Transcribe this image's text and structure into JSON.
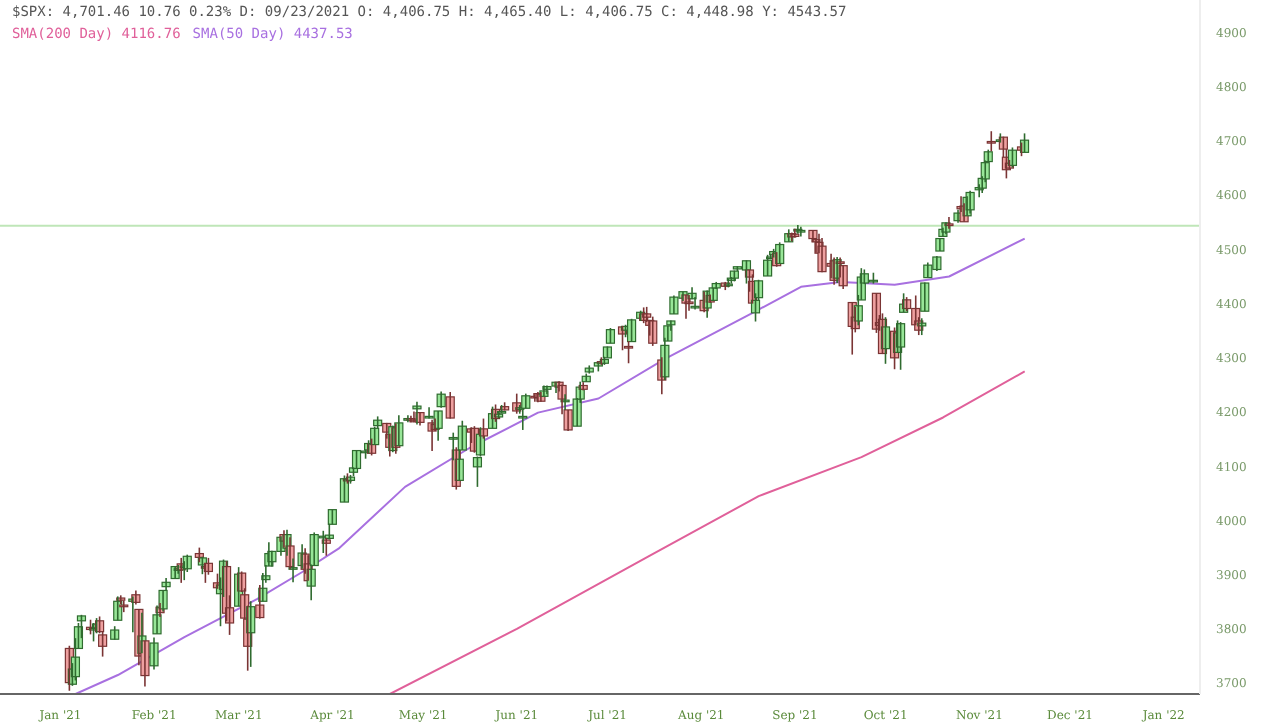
{
  "chart_data": {
    "type": "candlestick",
    "title": "$SPX: 4,701.46 10.76 0.23% D: 09/23/2021 O: 4,406.75 H: 4,465.40 L: 4,406.75 C: 4,448.98 Y: 4543.57",
    "legend": "top left",
    "xlim": [
      "2020-12-12",
      "2022-01-13"
    ],
    "xticks": [
      {
        "value": "2021-01-01",
        "label": "Jan '21"
      },
      {
        "value": "2021-02-01",
        "label": "Feb '21"
      },
      {
        "value": "2021-03-01",
        "label": "Mar '21"
      },
      {
        "value": "2021-04-01",
        "label": "Apr '21"
      },
      {
        "value": "2021-05-01",
        "label": "May '21"
      },
      {
        "value": "2021-06-01",
        "label": "Jun '21"
      },
      {
        "value": "2021-07-01",
        "label": "Jul '21"
      },
      {
        "value": "2021-08-01",
        "label": "Aug '21"
      },
      {
        "value": "2021-09-01",
        "label": "Sep '21"
      },
      {
        "value": "2021-10-01",
        "label": "Oct '21"
      },
      {
        "value": "2021-11-01",
        "label": "Nov '21"
      },
      {
        "value": "2021-12-01",
        "label": "Dec '21"
      },
      {
        "value": "2022-01-01",
        "label": "Jan '22"
      }
    ],
    "ylim": [
      3680,
      4960
    ],
    "yticks": [
      3700,
      3800,
      3900,
      4000,
      4100,
      4200,
      4300,
      4400,
      4500,
      4600,
      4700,
      4800,
      4900
    ],
    "ref_lines": [
      {
        "axis": "y",
        "value": 4543.57,
        "color": "#bfe6b8"
      }
    ],
    "x": [
      "2021-01-04",
      "2021-01-05",
      "2021-01-06",
      "2021-01-07",
      "2021-01-08",
      "2021-01-11",
      "2021-01-12",
      "2021-01-13",
      "2021-01-14",
      "2021-01-15",
      "2021-01-19",
      "2021-01-20",
      "2021-01-21",
      "2021-01-22",
      "2021-01-25",
      "2021-01-26",
      "2021-01-27",
      "2021-01-28",
      "2021-01-29",
      "2021-02-01",
      "2021-02-02",
      "2021-02-03",
      "2021-02-04",
      "2021-02-05",
      "2021-02-08",
      "2021-02-09",
      "2021-02-10",
      "2021-02-11",
      "2021-02-12",
      "2021-02-16",
      "2021-02-17",
      "2021-02-18",
      "2021-02-19",
      "2021-02-22",
      "2021-02-23",
      "2021-02-24",
      "2021-02-25",
      "2021-02-26",
      "2021-03-01",
      "2021-03-02",
      "2021-03-03",
      "2021-03-04",
      "2021-03-05",
      "2021-03-08",
      "2021-03-09",
      "2021-03-10",
      "2021-03-11",
      "2021-03-12",
      "2021-03-15",
      "2021-03-16",
      "2021-03-17",
      "2021-03-18",
      "2021-03-19",
      "2021-03-22",
      "2021-03-23",
      "2021-03-24",
      "2021-03-25",
      "2021-03-26",
      "2021-03-29",
      "2021-03-30",
      "2021-03-31",
      "2021-04-01",
      "2021-04-05",
      "2021-04-06",
      "2021-04-07",
      "2021-04-08",
      "2021-04-09",
      "2021-04-12",
      "2021-04-13",
      "2021-04-14",
      "2021-04-15",
      "2021-04-16",
      "2021-04-19",
      "2021-04-20",
      "2021-04-21",
      "2021-04-22",
      "2021-04-23",
      "2021-04-26",
      "2021-04-27",
      "2021-04-28",
      "2021-04-29",
      "2021-04-30",
      "2021-05-03",
      "2021-05-04",
      "2021-05-05",
      "2021-05-06",
      "2021-05-07",
      "2021-05-10",
      "2021-05-11",
      "2021-05-12",
      "2021-05-13",
      "2021-05-14",
      "2021-05-17",
      "2021-05-18",
      "2021-05-19",
      "2021-05-20",
      "2021-05-21",
      "2021-05-24",
      "2021-05-25",
      "2021-05-26",
      "2021-05-27",
      "2021-05-28",
      "2021-06-01",
      "2021-06-02",
      "2021-06-03",
      "2021-06-04",
      "2021-06-07",
      "2021-06-08",
      "2021-06-09",
      "2021-06-10",
      "2021-06-11",
      "2021-06-14",
      "2021-06-15",
      "2021-06-16",
      "2021-06-17",
      "2021-06-18",
      "2021-06-21",
      "2021-06-22",
      "2021-06-23",
      "2021-06-24",
      "2021-06-25",
      "2021-06-28",
      "2021-06-29",
      "2021-06-30",
      "2021-07-01",
      "2021-07-02",
      "2021-07-06",
      "2021-07-07",
      "2021-07-08",
      "2021-07-09",
      "2021-07-12",
      "2021-07-13",
      "2021-07-14",
      "2021-07-15",
      "2021-07-16",
      "2021-07-19",
      "2021-07-20",
      "2021-07-21",
      "2021-07-22",
      "2021-07-23",
      "2021-07-26",
      "2021-07-27",
      "2021-07-28",
      "2021-07-29",
      "2021-07-30",
      "2021-08-02",
      "2021-08-03",
      "2021-08-04",
      "2021-08-05",
      "2021-08-06",
      "2021-08-09",
      "2021-08-10",
      "2021-08-11",
      "2021-08-12",
      "2021-08-13",
      "2021-08-16",
      "2021-08-17",
      "2021-08-18",
      "2021-08-19",
      "2021-08-20",
      "2021-08-23",
      "2021-08-24",
      "2021-08-25",
      "2021-08-26",
      "2021-08-27",
      "2021-08-30",
      "2021-08-31",
      "2021-09-01",
      "2021-09-02",
      "2021-09-03",
      "2021-09-07",
      "2021-09-08",
      "2021-09-09",
      "2021-09-10",
      "2021-09-13",
      "2021-09-14",
      "2021-09-15",
      "2021-09-16",
      "2021-09-17",
      "2021-09-20",
      "2021-09-21",
      "2021-09-22",
      "2021-09-23",
      "2021-09-24",
      "2021-09-27",
      "2021-09-28",
      "2021-09-29",
      "2021-09-30",
      "2021-10-01",
      "2021-10-04",
      "2021-10-05",
      "2021-10-06",
      "2021-10-07",
      "2021-10-08",
      "2021-10-11",
      "2021-10-12",
      "2021-10-13",
      "2021-10-14",
      "2021-10-15",
      "2021-10-18",
      "2021-10-19",
      "2021-10-20",
      "2021-10-21",
      "2021-10-22",
      "2021-10-25",
      "2021-10-26",
      "2021-10-27",
      "2021-10-28",
      "2021-10-29",
      "2021-11-01",
      "2021-11-02",
      "2021-11-03",
      "2021-11-04",
      "2021-11-05",
      "2021-11-08",
      "2021-11-09",
      "2021-11-10",
      "2021-11-11",
      "2021-11-12",
      "2021-11-15",
      "2021-11-16"
    ],
    "ohlc": [
      [
        3764,
        3769,
        3686,
        3701
      ],
      [
        3698,
        3737,
        3695,
        3726
      ],
      [
        3712,
        3783,
        3705,
        3748
      ],
      [
        3764,
        3811,
        3764,
        3804
      ],
      [
        3815,
        3826,
        3783,
        3824
      ],
      [
        3803,
        3817,
        3790,
        3799
      ],
      [
        3801,
        3811,
        3777,
        3801
      ],
      [
        3802,
        3820,
        3792,
        3809
      ],
      [
        3815,
        3823,
        3792,
        3795
      ],
      [
        3789,
        3796,
        3749,
        3768
      ],
      [
        3781,
        3805,
        3780,
        3798
      ],
      [
        3816,
        3860,
        3816,
        3851
      ],
      [
        3857,
        3862,
        3846,
        3853
      ],
      [
        3844,
        3852,
        3831,
        3841
      ],
      [
        3851,
        3860,
        3794,
        3855
      ],
      [
        3863,
        3871,
        3845,
        3849
      ],
      [
        3836,
        3836,
        3733,
        3750
      ],
      [
        3755,
        3830,
        3755,
        3787
      ],
      [
        3778,
        3778,
        3694,
        3714
      ],
      [
        3732,
        3784,
        3725,
        3774
      ],
      [
        3791,
        3843,
        3791,
        3826
      ],
      [
        3840,
        3848,
        3822,
        3830
      ],
      [
        3837,
        3872,
        3832,
        3871
      ],
      [
        3878,
        3894,
        3871,
        3886
      ],
      [
        3893,
        3916,
        3892,
        3915
      ],
      [
        3911,
        3918,
        3902,
        3911
      ],
      [
        3920,
        3931,
        3885,
        3909
      ],
      [
        3916,
        3925,
        3890,
        3916
      ],
      [
        3911,
        3937,
        3905,
        3934
      ],
      [
        3939,
        3950,
        3923,
        3932
      ],
      [
        3918,
        3933,
        3901,
        3931
      ],
      [
        3915,
        3921,
        3885,
        3913
      ],
      [
        3921,
        3931,
        3900,
        3906
      ],
      [
        3885,
        3902,
        3874,
        3876
      ],
      [
        3865,
        3895,
        3805,
        3881
      ],
      [
        3873,
        3928,
        3859,
        3925
      ],
      [
        3915,
        3925,
        3814,
        3829
      ],
      [
        3839,
        3862,
        3789,
        3811
      ],
      [
        3842,
        3914,
        3842,
        3901
      ],
      [
        3903,
        3906,
        3868,
        3870
      ],
      [
        3863,
        3875,
        3818,
        3820
      ],
      [
        3818,
        3843,
        3723,
        3768
      ],
      [
        3793,
        3851,
        3730,
        3841
      ],
      [
        3844,
        3881,
        3819,
        3821
      ],
      [
        3851,
        3903,
        3851,
        3875
      ],
      [
        3891,
        3918,
        3885,
        3898
      ],
      [
        3916,
        3960,
        3916,
        3939
      ],
      [
        3924,
        3944,
        3915,
        3943
      ],
      [
        3943,
        3971,
        3935,
        3969
      ],
      [
        3974,
        3982,
        3950,
        3962
      ],
      [
        3949,
        3983,
        3935,
        3974
      ],
      [
        3953,
        3969,
        3910,
        3915
      ],
      [
        3913,
        3930,
        3886,
        3913
      ],
      [
        3917,
        3956,
        3911,
        3940
      ],
      [
        3938,
        3949,
        3902,
        3910
      ],
      [
        3920,
        3936,
        3889,
        3889
      ],
      [
        3879,
        3919,
        3853,
        3910
      ],
      [
        3917,
        3978,
        3917,
        3974
      ],
      [
        3969,
        3981,
        3940,
        3971
      ],
      [
        3964,
        3968,
        3935,
        3958
      ],
      [
        3967,
        3994,
        3965,
        3973
      ],
      [
        3993,
        4020,
        3993,
        4020
      ],
      [
        4034,
        4083,
        4034,
        4077
      ],
      [
        4076,
        4087,
        4068,
        4074
      ],
      [
        4074,
        4084,
        4068,
        4080
      ],
      [
        4089,
        4098,
        4082,
        4097
      ],
      [
        4096,
        4130,
        4095,
        4129
      ],
      [
        4125,
        4131,
        4114,
        4128
      ],
      [
        4130,
        4148,
        4124,
        4142
      ],
      [
        4141,
        4151,
        4120,
        4124
      ],
      [
        4140,
        4173,
        4140,
        4170
      ],
      [
        4175,
        4192,
        4170,
        4185
      ],
      [
        4179,
        4180,
        4151,
        4163
      ],
      [
        4159,
        4160,
        4118,
        4135
      ],
      [
        4129,
        4175,
        4126,
        4173
      ],
      [
        4171,
        4179,
        4123,
        4135
      ],
      [
        4138,
        4194,
        4138,
        4180
      ],
      [
        4185,
        4194,
        4181,
        4188
      ],
      [
        4188,
        4193,
        4181,
        4187
      ],
      [
        4185,
        4201,
        4181,
        4183
      ],
      [
        4206,
        4219,
        4177,
        4211
      ],
      [
        4199,
        4199,
        4175,
        4181
      ],
      [
        4192,
        4209,
        4188,
        4192
      ],
      [
        4180,
        4186,
        4128,
        4165
      ],
      [
        4177,
        4188,
        4165,
        4168
      ],
      [
        4170,
        4202,
        4147,
        4202
      ],
      [
        4210,
        4238,
        4208,
        4233
      ],
      [
        4228,
        4237,
        4188,
        4189
      ],
      [
        4150,
        4162,
        4111,
        4153
      ],
      [
        4130,
        4135,
        4057,
        4063
      ],
      [
        4074,
        4131,
        4074,
        4113
      ],
      [
        4130,
        4184,
        4130,
        4174
      ],
      [
        4169,
        4172,
        4143,
        4163
      ],
      [
        4170,
        4174,
        4125,
        4128
      ],
      [
        4099,
        4118,
        4062,
        4116
      ],
      [
        4121,
        4172,
        4118,
        4159
      ],
      [
        4169,
        4188,
        4151,
        4156
      ],
      [
        4170,
        4210,
        4170,
        4197
      ],
      [
        4205,
        4214,
        4182,
        4188
      ],
      [
        4191,
        4202,
        4188,
        4196
      ],
      [
        4201,
        4213,
        4198,
        4201
      ],
      [
        4210,
        4218,
        4203,
        4204
      ],
      [
        4217,
        4234,
        4197,
        4202
      ],
      [
        4207,
        4213,
        4197,
        4208
      ],
      [
        4191,
        4204,
        4167,
        4192
      ],
      [
        4207,
        4234,
        4207,
        4230
      ],
      [
        4229,
        4233,
        4219,
        4227
      ],
      [
        4234,
        4237,
        4218,
        4227
      ],
      [
        4233,
        4237,
        4219,
        4220
      ],
      [
        4229,
        4249,
        4229,
        4239
      ],
      [
        4242,
        4249,
        4233,
        4247
      ],
      [
        4248,
        4255,
        4235,
        4255
      ],
      [
        4255,
        4257,
        4238,
        4246
      ],
      [
        4249,
        4251,
        4196,
        4224
      ],
      [
        4220,
        4233,
        4204,
        4222
      ],
      [
        4204,
        4204,
        4165,
        4167
      ],
      [
        4174,
        4226,
        4174,
        4224
      ],
      [
        4224,
        4256,
        4217,
        4246
      ],
      [
        4249,
        4255,
        4240,
        4242
      ],
      [
        4256,
        4271,
        4256,
        4266
      ],
      [
        4274,
        4286,
        4271,
        4281
      ],
      [
        4285,
        4292,
        4275,
        4291
      ],
      [
        4293,
        4301,
        4287,
        4292
      ],
      [
        4290,
        4302,
        4287,
        4297
      ],
      [
        4300,
        4321,
        4300,
        4320
      ],
      [
        4327,
        4355,
        4327,
        4352
      ],
      [
        4357,
        4359,
        4314,
        4344
      ],
      [
        4351,
        4361,
        4338,
        4358
      ],
      [
        4321,
        4331,
        4290,
        4320
      ],
      [
        4330,
        4372,
        4330,
        4370
      ],
      [
        4373,
        4387,
        4368,
        4384
      ],
      [
        4381,
        4393,
        4364,
        4369
      ],
      [
        4381,
        4394,
        4366,
        4375
      ],
      [
        4369,
        4370,
        4341,
        4360
      ],
      [
        4368,
        4376,
        4322,
        4327
      ],
      [
        4296,
        4301,
        4233,
        4259
      ],
      [
        4265,
        4337,
        4259,
        4323
      ],
      [
        4331,
        4359,
        4331,
        4359
      ],
      [
        4361,
        4369,
        4350,
        4368
      ],
      [
        4381,
        4415,
        4381,
        4412
      ],
      [
        4410,
        4422,
        4405,
        4422
      ],
      [
        4416,
        4416,
        4372,
        4401
      ],
      [
        4403,
        4416,
        4387,
        4400
      ],
      [
        4409,
        4430,
        4408,
        4419
      ],
      [
        4395,
        4412,
        4389,
        4395
      ],
      [
        4406,
        4422,
        4384,
        4387
      ],
      [
        4392,
        4424,
        4374,
        4423
      ],
      [
        4415,
        4417,
        4401,
        4403
      ],
      [
        4406,
        4429,
        4405,
        4429
      ],
      [
        4429,
        4440,
        4427,
        4437
      ],
      [
        4438,
        4440,
        4425,
        4432
      ],
      [
        4435,
        4446,
        4430,
        4436
      ],
      [
        4443,
        4449,
        4437,
        4447
      ],
      [
        4447,
        4461,
        4441,
        4460
      ],
      [
        4464,
        4469,
        4460,
        4468
      ],
      [
        4462,
        4480,
        4437,
        4479
      ],
      [
        4462,
        4462,
        4422,
        4449
      ],
      [
        4441,
        4454,
        4400,
        4401
      ],
      [
        4383,
        4419,
        4367,
        4406
      ],
      [
        4411,
        4444,
        4406,
        4442
      ],
      [
        4451,
        4490,
        4451,
        4480
      ],
      [
        4485,
        4492,
        4482,
        4486
      ],
      [
        4490,
        4501,
        4485,
        4496
      ],
      [
        4493,
        4495,
        4468,
        4470
      ],
      [
        4474,
        4513,
        4474,
        4509
      ],
      [
        4514,
        4537,
        4514,
        4529
      ],
      [
        4529,
        4531,
        4515,
        4523
      ],
      [
        4528,
        4538,
        4522,
        4524
      ],
      [
        4534,
        4545,
        4529,
        4537
      ],
      [
        4532,
        4542,
        4524,
        4535
      ],
      [
        4535,
        4536,
        4513,
        4520
      ],
      [
        4518,
        4521,
        4494,
        4514
      ],
      [
        4513,
        4529,
        4493,
        4493
      ],
      [
        4506,
        4521,
        4458,
        4459
      ],
      [
        4474,
        4492,
        4447,
        4469
      ],
      [
        4479,
        4485,
        4435,
        4443
      ],
      [
        4447,
        4486,
        4438,
        4481
      ],
      [
        4477,
        4485,
        4448,
        4474
      ],
      [
        4470,
        4471,
        4427,
        4433
      ],
      [
        4402,
        4403,
        4306,
        4358
      ],
      [
        4375,
        4394,
        4347,
        4354
      ],
      [
        4368,
        4416,
        4360,
        4396
      ],
      [
        4406.75,
        4465.4,
        4406.75,
        4448.98
      ],
      [
        4438,
        4463,
        4436,
        4455
      ],
      [
        4443,
        4457,
        4437,
        4443
      ],
      [
        4419,
        4419,
        4346,
        4353
      ],
      [
        4365,
        4379,
        4350,
        4360
      ],
      [
        4371,
        4382,
        4307,
        4308
      ],
      [
        4317,
        4375,
        4289,
        4357
      ],
      [
        4349,
        4356,
        4279,
        4300
      ],
      [
        4310,
        4369,
        4310,
        4346
      ],
      [
        4320,
        4366,
        4278,
        4363
      ],
      [
        4384,
        4419,
        4384,
        4399
      ],
      [
        4407,
        4412,
        4386,
        4391
      ],
      [
        4391,
        4415,
        4360,
        4361
      ],
      [
        4368,
        4375,
        4342,
        4351
      ],
      [
        4359,
        4373,
        4342,
        4364
      ],
      [
        4386,
        4439,
        4386,
        4438
      ],
      [
        4448,
        4476,
        4448,
        4471
      ],
      [
        4463,
        4488,
        4460,
        4486
      ],
      [
        4497,
        4521,
        4497,
        4520
      ],
      [
        4524,
        4540,
        4524,
        4537
      ],
      [
        4532,
        4550,
        4528,
        4549
      ],
      [
        4547,
        4560,
        4538,
        4545
      ],
      [
        4553,
        4573,
        4549,
        4567
      ],
      [
        4579,
        4598,
        4569,
        4575
      ],
      [
        4580,
        4585,
        4551,
        4551
      ],
      [
        4562,
        4598,
        4562,
        4596
      ],
      [
        4573,
        4608,
        4566,
        4605
      ],
      [
        4610,
        4620,
        4596,
        4614
      ],
      [
        4613,
        4635,
        4604,
        4631
      ],
      [
        4630,
        4664,
        4624,
        4660
      ],
      [
        4662,
        4684,
        4662,
        4680
      ],
      [
        4699,
        4718,
        4681,
        4698
      ],
      [
        4701,
        4714,
        4697,
        4702
      ],
      [
        4707,
        4708,
        4670,
        4685
      ],
      [
        4670,
        4685,
        4631,
        4647
      ],
      [
        4659,
        4665,
        4648,
        4650
      ],
      [
        4655,
        4688,
        4651,
        4683
      ],
      [
        4689,
        4697,
        4672,
        4683
      ],
      [
        4679,
        4714,
        4679,
        4701.46
      ]
    ],
    "series": [
      {
        "type": "line",
        "name": "SMA(200 Day) 4116.76",
        "color": "#e0609a",
        "x": [
          "2021-04-20",
          "2021-06-01",
          "2021-07-15",
          "2021-08-20",
          "2021-09-23",
          "2021-10-20",
          "2021-11-16"
        ],
        "values": [
          3680,
          3800,
          3935,
          4045,
          4117,
          4190,
          4275
        ]
      },
      {
        "type": "line",
        "name": "SMA(50 Day) 4437.53",
        "color": "#a870e0",
        "x": [
          "2021-01-06",
          "2021-01-20",
          "2021-02-11",
          "2021-03-07",
          "2021-03-22",
          "2021-04-03",
          "2021-04-25",
          "2021-05-17",
          "2021-06-08",
          "2021-06-28",
          "2021-07-20",
          "2021-08-18",
          "2021-09-03",
          "2021-09-16",
          "2021-09-23",
          "2021-10-04",
          "2021-10-22",
          "2021-11-16"
        ],
        "values": [
          3680,
          3715,
          3785,
          3855,
          3905,
          3948,
          4062,
          4136,
          4199,
          4225,
          4298,
          4383,
          4431,
          4440,
          4438,
          4435,
          4450,
          4520
        ]
      }
    ]
  }
}
